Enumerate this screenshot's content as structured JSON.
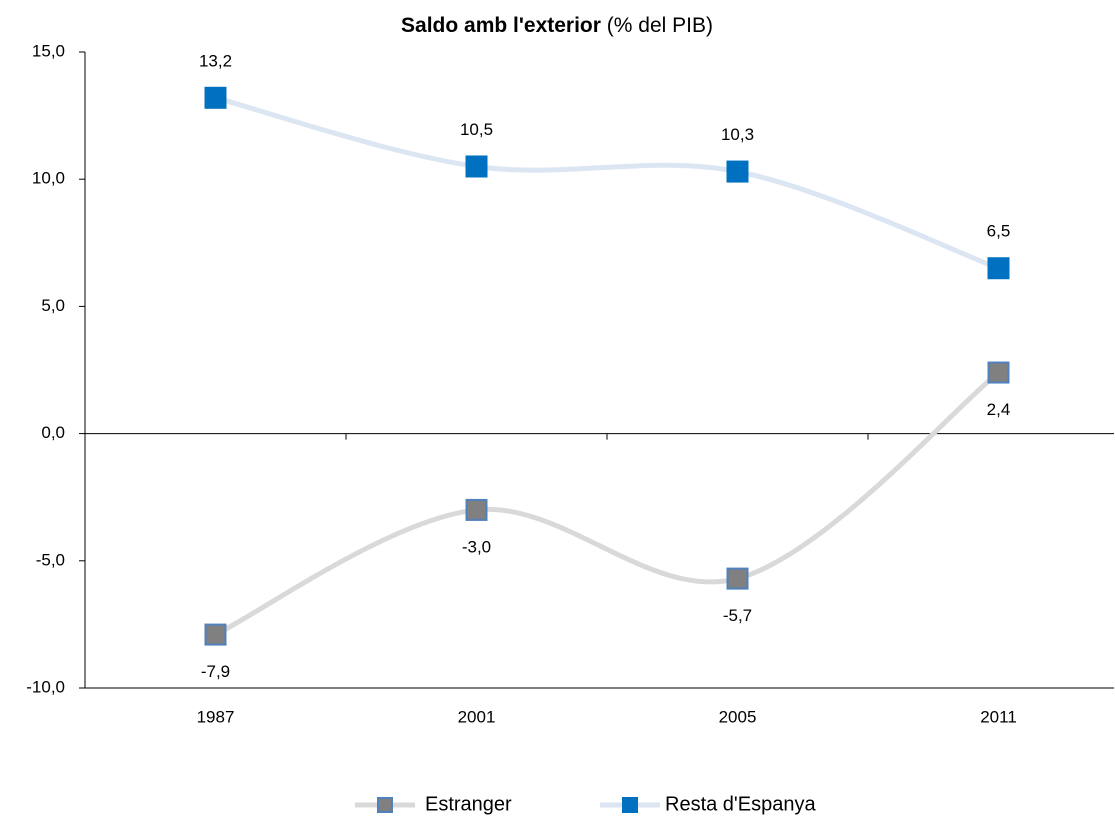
{
  "chart_data": {
    "type": "line",
    "title": "Saldo amb l'exterior",
    "subtitle": "(% del PIB)",
    "categories": [
      "1987",
      "2001",
      "2005",
      "2011"
    ],
    "series": [
      {
        "name": "Estranger",
        "color": "#d9d9d9",
        "marker_color": "#808080",
        "values": [
          -7.9,
          -3.0,
          -5.7,
          2.4
        ],
        "value_labels": [
          "-7,9",
          "-3,0",
          "-5,7",
          "2,4"
        ]
      },
      {
        "name": "Resta d'Espanya",
        "color": "#dce6f2",
        "marker_color": "#0070c0",
        "values": [
          13.2,
          10.5,
          10.3,
          6.5
        ],
        "value_labels": [
          "13,2",
          "10,5",
          "10,3",
          "6,5"
        ]
      }
    ],
    "ylim": [
      -10,
      15
    ],
    "yticks": [
      {
        "value": -10,
        "label": "-10,0"
      },
      {
        "value": -5,
        "label": "-5,0"
      },
      {
        "value": 0,
        "label": "0,0"
      },
      {
        "value": 5,
        "label": "5,0"
      },
      {
        "value": 10,
        "label": "10,0"
      },
      {
        "value": 15,
        "label": "15,0"
      }
    ],
    "legend": "bottom"
  }
}
